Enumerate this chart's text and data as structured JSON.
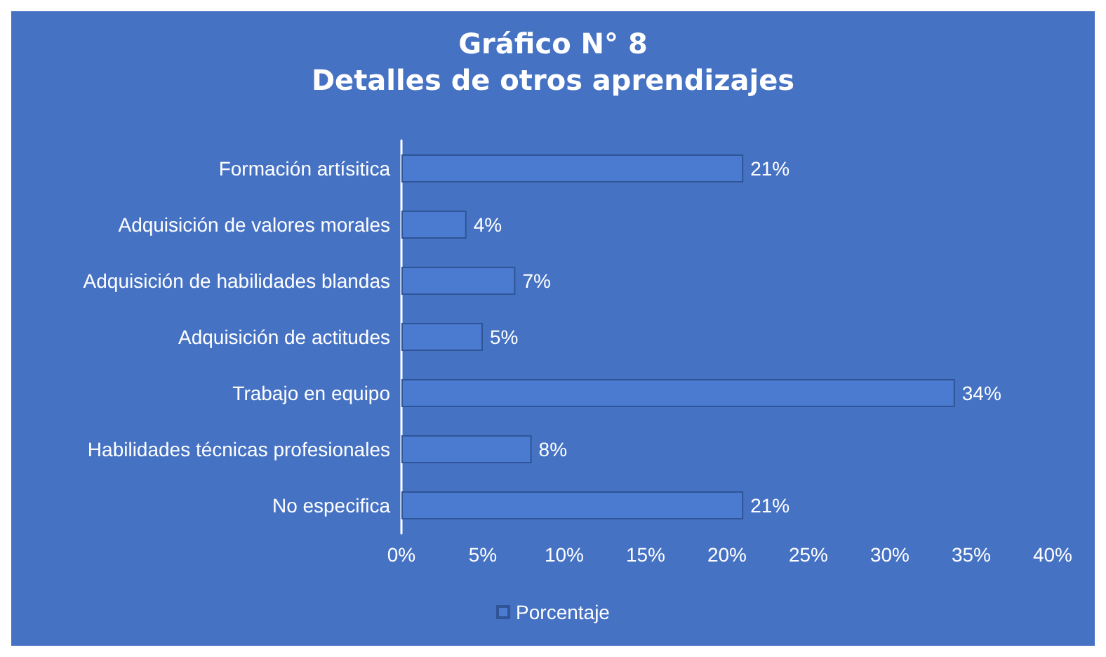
{
  "chart_data": {
    "type": "bar",
    "orientation": "horizontal",
    "title": "Gráfico N° 8",
    "subtitle": "Detalles de otros aprendizajes",
    "categories": [
      "Formación artísitica",
      "Adquisición de valores morales",
      "Adquisición de habilidades blandas",
      "Adquisición de actitudes",
      "Trabajo en equipo",
      "Habilidades técnicas profesionales",
      "No especifica"
    ],
    "series": [
      {
        "name": "Porcentaje",
        "color": "#4a7bd0",
        "values": [
          21,
          4,
          7,
          5,
          34,
          8,
          21
        ],
        "value_labels": [
          "21%",
          "4%",
          "7%",
          "5%",
          "34%",
          "8%",
          "21%"
        ]
      }
    ],
    "xlim": [
      0,
      40
    ],
    "xticks": [
      {
        "value": 0,
        "label": "0%"
      },
      {
        "value": 5,
        "label": "5%"
      },
      {
        "value": 10,
        "label": "10%"
      },
      {
        "value": 15,
        "label": "15%"
      },
      {
        "value": 20,
        "label": "20%"
      },
      {
        "value": 25,
        "label": "25%"
      },
      {
        "value": 30,
        "label": "30%"
      },
      {
        "value": 35,
        "label": "35%"
      },
      {
        "value": 40,
        "label": "40%"
      }
    ],
    "grid": false,
    "legend": "bottom"
  }
}
